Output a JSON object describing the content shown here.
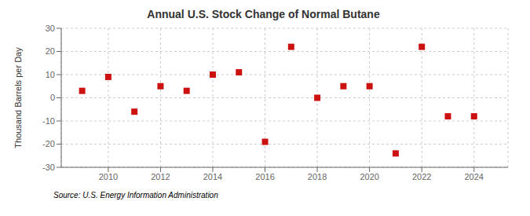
{
  "chart_data": {
    "type": "scatter",
    "title": "Annual U.S. Stock Change of Normal Butane",
    "ylabel": "Thousand Barrels per Day",
    "annotations": [
      "Source: U.S. Energy Information Administration"
    ],
    "x": [
      2009,
      2010,
      2011,
      2012,
      2013,
      2014,
      2015,
      2016,
      2017,
      2018,
      2019,
      2020,
      2021,
      2022,
      2023,
      2024
    ],
    "values": [
      3,
      9,
      -6,
      5,
      3,
      10,
      11,
      -19,
      22,
      0,
      5,
      5,
      -24,
      22,
      -8,
      -8
    ],
    "color": "#cc1111",
    "marker": "square",
    "xlim": [
      2008.2,
      2025.3
    ],
    "xticks": [
      2010,
      2012,
      2014,
      2016,
      2018,
      2020,
      2022,
      2024
    ],
    "ylim": [
      -30,
      30
    ],
    "yticks": [
      -30,
      -20,
      -10,
      0,
      10,
      20,
      30
    ],
    "grid": true
  }
}
